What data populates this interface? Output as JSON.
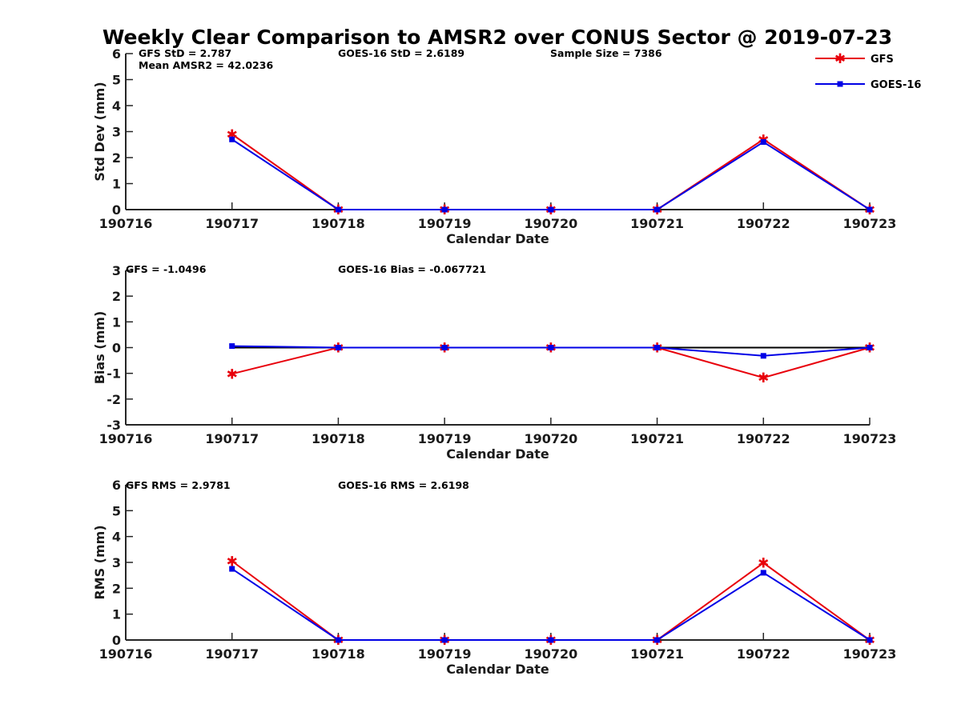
{
  "figure": {
    "title": "Weekly Clear Comparison to AMSR2 over CONUS Sector @ 2019-07-23"
  },
  "legend": [
    {
      "label": "GFS",
      "color": "#e8000b",
      "marker": "star"
    },
    {
      "label": "GOES-16",
      "color": "#0000e6",
      "marker": "square"
    }
  ],
  "colors": {
    "gfs": "#e8000b",
    "goes16": "#0000e6",
    "zero_line": "#000000",
    "axis": "#262626"
  },
  "chart_data": [
    {
      "type": "line",
      "ylabel": "Std Dev (mm)",
      "xlabel": "Calendar Date",
      "ylim": [
        0,
        6
      ],
      "yticks": [
        0,
        1,
        2,
        3,
        4,
        5,
        6
      ],
      "x": [
        "190716",
        "190717",
        "190718",
        "190719",
        "190720",
        "190721",
        "190722",
        "190723"
      ],
      "annotations": [
        "GFS StD = 2.787",
        "Mean AMSR2 = 42.0236",
        "GOES-16 StD = 2.6189",
        "Sample Size = 7386"
      ],
      "zero_line": false,
      "series": [
        {
          "name": "GFS",
          "values": [
            null,
            2.9,
            0,
            0,
            0,
            0,
            2.7,
            0
          ]
        },
        {
          "name": "GOES-16",
          "values": [
            null,
            2.7,
            0,
            0,
            0,
            0,
            2.6,
            0
          ]
        }
      ]
    },
    {
      "type": "line",
      "ylabel": "Bias (mm)",
      "xlabel": "Calendar Date",
      "ylim": [
        -3,
        3
      ],
      "yticks": [
        -3,
        -2,
        -1,
        0,
        1,
        2,
        3
      ],
      "x": [
        "190716",
        "190717",
        "190718",
        "190719",
        "190720",
        "190721",
        "190722",
        "190723"
      ],
      "annotations": [
        "GFS = -1.0496",
        "GOES-16 Bias  = -0.067721"
      ],
      "zero_line": true,
      "series": [
        {
          "name": "GFS",
          "values": [
            null,
            -1.02,
            0,
            0,
            0,
            0,
            -1.17,
            0
          ]
        },
        {
          "name": "GOES-16",
          "values": [
            null,
            0.06,
            0,
            0,
            0,
            0,
            -0.32,
            0
          ]
        }
      ]
    },
    {
      "type": "line",
      "ylabel": "RMS (mm)",
      "xlabel": "Calendar Date",
      "ylim": [
        0,
        6
      ],
      "yticks": [
        0,
        1,
        2,
        3,
        4,
        5,
        6
      ],
      "x": [
        "190716",
        "190717",
        "190718",
        "190719",
        "190720",
        "190721",
        "190722",
        "190723"
      ],
      "annotations": [
        "GFS RMS = 2.9781",
        "GOES-16 RMS = 2.6198"
      ],
      "zero_line": false,
      "series": [
        {
          "name": "GFS",
          "values": [
            null,
            3.05,
            0,
            0,
            0,
            0,
            2.98,
            0
          ]
        },
        {
          "name": "GOES-16",
          "values": [
            null,
            2.75,
            0,
            0,
            0,
            0,
            2.6,
            0
          ]
        }
      ]
    }
  ]
}
